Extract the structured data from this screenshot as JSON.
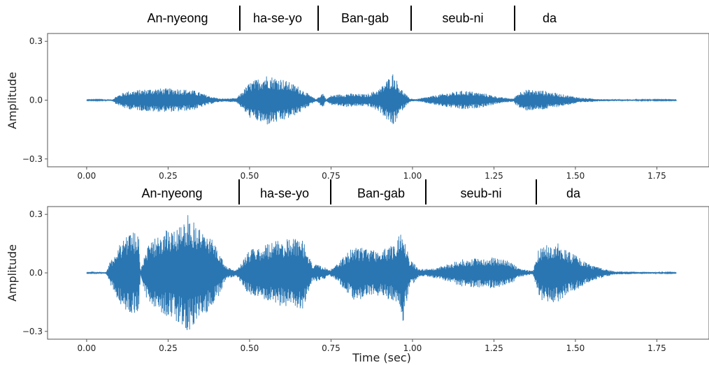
{
  "colors": {
    "waveform": "#2a76b2",
    "axes": "#555555",
    "text": "#000000"
  },
  "chart_data": [
    {
      "type": "line",
      "panel": "top",
      "ylabel": "Amplitude",
      "xlabel": "",
      "xlim": [
        -0.12,
        1.91
      ],
      "ylim": [
        -0.34,
        0.34
      ],
      "xticks": [
        "0.00",
        "0.25",
        "0.50",
        "0.75",
        "1.00",
        "1.25",
        "1.50",
        "1.75"
      ],
      "yticks": [
        "0.3",
        "0.0",
        "−0.3"
      ],
      "grid": false,
      "duration": 1.81,
      "words": [
        "An-nyeong",
        "ha-se-yo",
        "Ban-gab",
        "seub-ni",
        "da"
      ],
      "word_boundaries": [
        0.47,
        0.705,
        0.995,
        1.31
      ],
      "envelope": [
        [
          0.0,
          0.002
        ],
        [
          0.08,
          0.004
        ],
        [
          0.09,
          0.02
        ],
        [
          0.12,
          0.045
        ],
        [
          0.2,
          0.06
        ],
        [
          0.28,
          0.06
        ],
        [
          0.33,
          0.05
        ],
        [
          0.38,
          0.02
        ],
        [
          0.41,
          0.008
        ],
        [
          0.46,
          0.01
        ],
        [
          0.5,
          0.09
        ],
        [
          0.55,
          0.13
        ],
        [
          0.6,
          0.11
        ],
        [
          0.65,
          0.07
        ],
        [
          0.69,
          0.02
        ],
        [
          0.705,
          0.005
        ],
        [
          0.725,
          0.04
        ],
        [
          0.735,
          0.005
        ],
        [
          0.75,
          0.025
        ],
        [
          0.8,
          0.035
        ],
        [
          0.86,
          0.03
        ],
        [
          0.9,
          0.06
        ],
        [
          0.94,
          0.14
        ],
        [
          0.965,
          0.06
        ],
        [
          0.99,
          0.01
        ],
        [
          1.01,
          0.005
        ],
        [
          1.04,
          0.015
        ],
        [
          1.1,
          0.035
        ],
        [
          1.16,
          0.05
        ],
        [
          1.22,
          0.035
        ],
        [
          1.27,
          0.015
        ],
        [
          1.31,
          0.008
        ],
        [
          1.32,
          0.03
        ],
        [
          1.34,
          0.055
        ],
        [
          1.4,
          0.05
        ],
        [
          1.46,
          0.03
        ],
        [
          1.52,
          0.012
        ],
        [
          1.58,
          0.005
        ],
        [
          1.81,
          0.002
        ]
      ]
    },
    {
      "type": "line",
      "panel": "bottom",
      "ylabel": "Amplitude",
      "xlabel": "Time (sec)",
      "xlim": [
        -0.12,
        1.91
      ],
      "ylim": [
        -0.34,
        0.34
      ],
      "xticks": [
        "0.00",
        "0.25",
        "0.50",
        "0.75",
        "1.00",
        "1.25",
        "1.50",
        "1.75"
      ],
      "yticks": [
        "0.3",
        "0.0",
        "−0.3"
      ],
      "grid": false,
      "duration": 1.81,
      "words": [
        "An-nyeong",
        "ha-se-yo",
        "Ban-gab",
        "seub-ni",
        "da"
      ],
      "word_boundaries": [
        0.465,
        0.745,
        1.035,
        1.37
      ],
      "envelope": [
        [
          0.0,
          0.002
        ],
        [
          0.06,
          0.005
        ],
        [
          0.07,
          0.05
        ],
        [
          0.1,
          0.15
        ],
        [
          0.13,
          0.22
        ],
        [
          0.16,
          0.2
        ],
        [
          0.165,
          0.01
        ],
        [
          0.18,
          0.12
        ],
        [
          0.22,
          0.2
        ],
        [
          0.27,
          0.24
        ],
        [
          0.31,
          0.3
        ],
        [
          0.36,
          0.22
        ],
        [
          0.4,
          0.14
        ],
        [
          0.43,
          0.03
        ],
        [
          0.46,
          0.015
        ],
        [
          0.5,
          0.12
        ],
        [
          0.57,
          0.16
        ],
        [
          0.63,
          0.18
        ],
        [
          0.66,
          0.2
        ],
        [
          0.69,
          0.05
        ],
        [
          0.73,
          0.03
        ],
        [
          0.745,
          0.015
        ],
        [
          0.76,
          0.03
        ],
        [
          0.82,
          0.14
        ],
        [
          0.9,
          0.12
        ],
        [
          0.95,
          0.15
        ],
        [
          0.97,
          0.27
        ],
        [
          0.99,
          0.08
        ],
        [
          1.02,
          0.02
        ],
        [
          1.05,
          0.02
        ],
        [
          1.1,
          0.04
        ],
        [
          1.15,
          0.07
        ],
        [
          1.25,
          0.08
        ],
        [
          1.3,
          0.06
        ],
        [
          1.33,
          0.02
        ],
        [
          1.37,
          0.01
        ],
        [
          1.39,
          0.14
        ],
        [
          1.44,
          0.16
        ],
        [
          1.47,
          0.12
        ],
        [
          1.5,
          0.09
        ],
        [
          1.55,
          0.04
        ],
        [
          1.62,
          0.008
        ],
        [
          1.81,
          0.002
        ]
      ]
    }
  ]
}
